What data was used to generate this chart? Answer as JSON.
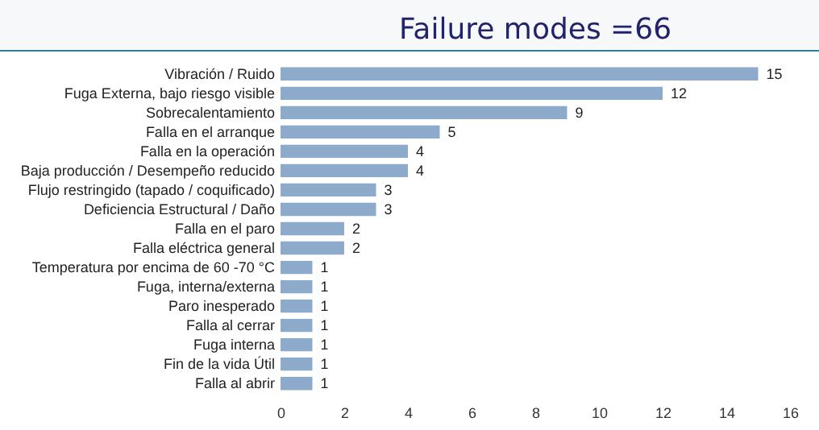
{
  "chart_data": {
    "type": "bar",
    "orientation": "horizontal",
    "title": "Failure modes =66",
    "categories": [
      "Vibración / Ruido",
      "Fuga Externa, bajo riesgo visible",
      "Sobrecalentamiento",
      "Falla en el arranque",
      "Falla en la operación",
      "Baja producción / Desempeño reducido",
      "Flujo restringido (tapado / coquificado)",
      "Deficiencia Estructural / Daño",
      "Falla en el paro",
      "Falla eléctrica general",
      "Temperatura por encima de 60 -70 °C",
      "Fuga, interna/externa",
      "Paro inesperado",
      "Falla al cerrar",
      "Fuga interna",
      "Fin de la vida Útil",
      "Falla al abrir"
    ],
    "values": [
      15,
      12,
      9,
      5,
      4,
      4,
      3,
      3,
      2,
      2,
      1,
      1,
      1,
      1,
      1,
      1,
      1
    ],
    "color": "#8eaacb",
    "xlim": [
      0,
      16
    ],
    "xticks": [
      0,
      2,
      4,
      6,
      8,
      10,
      12,
      14,
      16
    ],
    "data_labels": true
  }
}
